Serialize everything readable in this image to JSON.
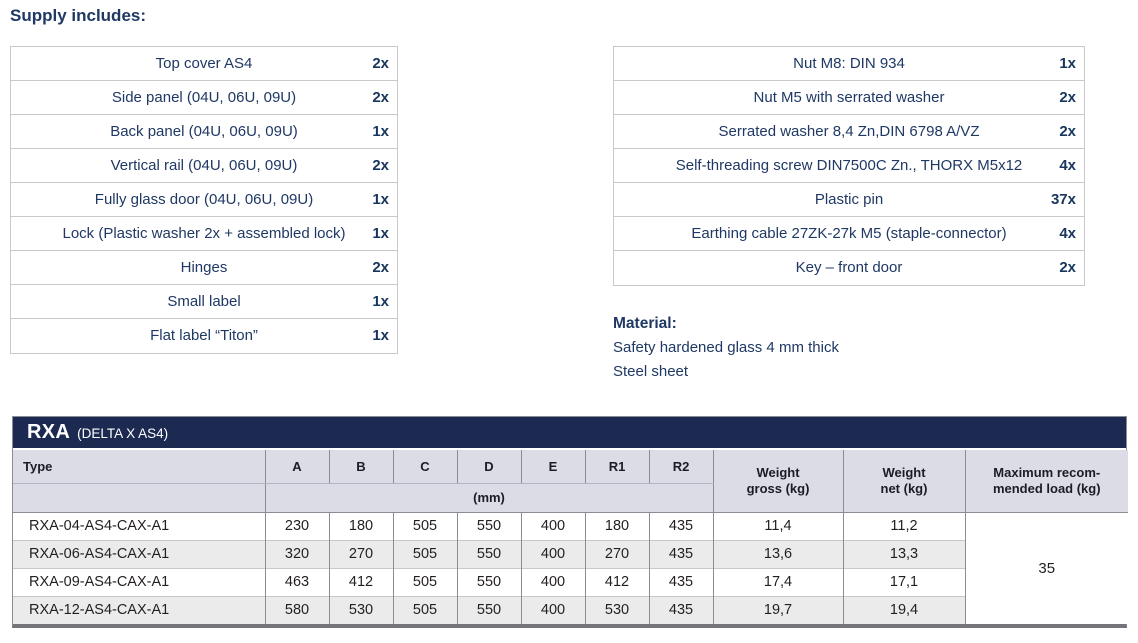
{
  "page": {
    "supply_heading": "Supply includes:"
  },
  "colors": {
    "navy_bar": "#1c2a52",
    "text_navy": "#1f3864",
    "table_header_bg": "#dcdce6",
    "row_alt_bg": "#ebebeb",
    "list_border": "#c9c9c9",
    "table_border": "#8c8c94"
  },
  "supply_lists": {
    "left": [
      {
        "item": "Top cover AS4",
        "qty": "2x"
      },
      {
        "item": "Side panel (04U, 06U, 09U)",
        "qty": "2x"
      },
      {
        "item": "Back panel (04U, 06U, 09U)",
        "qty": "1x"
      },
      {
        "item": "Vertical rail (04U, 06U, 09U)",
        "qty": "2x"
      },
      {
        "item": "Fully glass door (04U, 06U, 09U)",
        "qty": "1x"
      },
      {
        "item": "Lock (Plastic washer 2x + assembled lock)",
        "qty": "1x"
      },
      {
        "item": "Hinges",
        "qty": "2x"
      },
      {
        "item": "Small label",
        "qty": "1x"
      },
      {
        "item": "Flat label “Titon”",
        "qty": "1x"
      }
    ],
    "right": [
      {
        "item": "Nut M8: DIN 934",
        "qty": "1x"
      },
      {
        "item": "Nut M5 with serrated washer",
        "qty": "2x"
      },
      {
        "item": "Serrated washer 8,4 Zn,DIN 6798 A/VZ",
        "qty": "2x"
      },
      {
        "item": "Self-threading screw DIN7500C Zn., THORX M5x12",
        "qty": "4x"
      },
      {
        "item": "Plastic pin",
        "qty": "37x"
      },
      {
        "item": "Earthing cable 27ZK-27k M5 (staple-connector)",
        "qty": "4x"
      },
      {
        "item": "Key – front door",
        "qty": "2x"
      }
    ]
  },
  "material": {
    "heading": "Material:",
    "lines": [
      "Safety hardened glass 4 mm thick",
      "Steel sheet"
    ]
  },
  "spec_table": {
    "title": "RXA",
    "subtitle": "(DELTA X AS4)",
    "col_type": "Type",
    "dim_columns": [
      "A",
      "B",
      "C",
      "D",
      "E",
      "R1",
      "R2"
    ],
    "unit_label": "(mm)",
    "extra_columns": [
      {
        "label": "Weight\ngross (kg)"
      },
      {
        "label": "Weight\nnet (kg)"
      },
      {
        "label": "Maximum recom-\nmended load (kg)"
      }
    ],
    "rows": [
      {
        "type": "RXA-04-AS4-CAX-A1",
        "dims": [
          "230",
          "180",
          "505",
          "550",
          "400",
          "180",
          "435"
        ],
        "weight_gross": "11,4",
        "weight_net": "11,2"
      },
      {
        "type": "RXA-06-AS4-CAX-A1",
        "dims": [
          "320",
          "270",
          "505",
          "550",
          "400",
          "270",
          "435"
        ],
        "weight_gross": "13,6",
        "weight_net": "13,3"
      },
      {
        "type": "RXA-09-AS4-CAX-A1",
        "dims": [
          "463",
          "412",
          "505",
          "550",
          "400",
          "412",
          "435"
        ],
        "weight_gross": "17,4",
        "weight_net": "17,1"
      },
      {
        "type": "RXA-12-AS4-CAX-A1",
        "dims": [
          "580",
          "530",
          "505",
          "550",
          "400",
          "530",
          "435"
        ],
        "weight_gross": "19,7",
        "weight_net": "19,4"
      }
    ],
    "max_load": "35"
  }
}
